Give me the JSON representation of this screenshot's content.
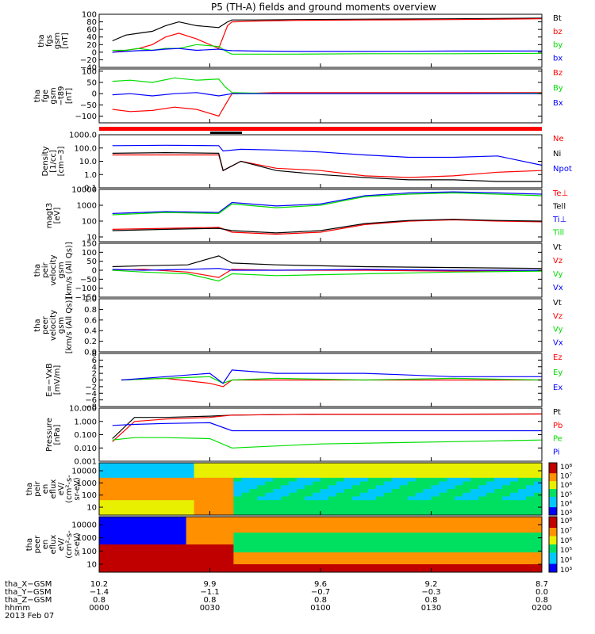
{
  "title": "P5 (TH-A) fields and ground moments overview",
  "colors": {
    "black": "#000000",
    "red": "#ff0000",
    "green": "#00dd00",
    "blue": "#0000ff"
  },
  "chart_data": [
    {
      "type": "line",
      "id": "fgs",
      "ylabel": [
        "tha",
        "fgs",
        "gsm",
        "[nT]"
      ],
      "ylim": [
        -40,
        100
      ],
      "ticks": [
        {
          "v": 100,
          "t": "100"
        },
        {
          "v": 80,
          "t": "80"
        },
        {
          "v": 60,
          "t": "60"
        },
        {
          "v": 40,
          "t": "40"
        },
        {
          "v": 20,
          "t": "20"
        },
        {
          "v": 0,
          "t": "0"
        },
        {
          "v": -20,
          "t": "−20"
        },
        {
          "v": -40,
          "t": "−40"
        }
      ],
      "legend": [
        "Bt",
        "bz",
        "by",
        "bx"
      ],
      "series": [
        {
          "name": "Bt",
          "color": "black",
          "x": [
            0.03,
            0.06,
            0.09,
            0.12,
            0.15,
            0.18,
            0.22,
            0.27,
            0.29,
            0.3,
            0.35,
            0.45,
            0.6,
            0.8,
            1.0
          ],
          "y": [
            30,
            45,
            50,
            55,
            70,
            80,
            70,
            65,
            80,
            85,
            85,
            86,
            87,
            88,
            90
          ]
        },
        {
          "name": "bz",
          "color": "red",
          "x": [
            0.03,
            0.06,
            0.09,
            0.12,
            0.15,
            0.18,
            0.22,
            0.27,
            0.29,
            0.3,
            0.35,
            0.45,
            0.6,
            0.8,
            1.0
          ],
          "y": [
            0,
            5,
            10,
            20,
            40,
            50,
            35,
            10,
            70,
            80,
            82,
            84,
            85,
            86,
            88
          ]
        },
        {
          "name": "by",
          "color": "green",
          "x": [
            0.03,
            0.06,
            0.09,
            0.12,
            0.15,
            0.18,
            0.22,
            0.27,
            0.29,
            0.3,
            0.35,
            0.45,
            0.6,
            0.8,
            1.0
          ],
          "y": [
            5,
            5,
            10,
            5,
            10,
            10,
            20,
            15,
            0,
            -5,
            -5,
            -5,
            -4,
            -4,
            -3
          ]
        },
        {
          "name": "bx",
          "color": "blue",
          "x": [
            0.03,
            0.06,
            0.09,
            0.12,
            0.15,
            0.18,
            0.22,
            0.27,
            0.29,
            0.3,
            0.35,
            0.45,
            0.6,
            0.8,
            1.0
          ],
          "y": [
            0,
            2,
            4,
            5,
            8,
            10,
            5,
            8,
            5,
            4,
            3,
            2,
            2,
            3,
            3
          ]
        }
      ]
    },
    {
      "type": "line",
      "id": "fge",
      "ylabel": [
        "tha",
        "fge",
        "gsm",
        "−t89",
        "[nT]"
      ],
      "ylim": [
        -130,
        110
      ],
      "ticks": [
        {
          "v": 100,
          "t": "100"
        },
        {
          "v": 50,
          "t": "50"
        },
        {
          "v": 0,
          "t": "0"
        },
        {
          "v": -50,
          "t": "−50"
        },
        {
          "v": -100,
          "t": "−100"
        }
      ],
      "legend": [
        "Bz",
        "By",
        "Bx"
      ],
      "series": [
        {
          "name": "Bz",
          "color": "red",
          "x": [
            0.03,
            0.07,
            0.12,
            0.17,
            0.22,
            0.27,
            0.285,
            0.3,
            0.4,
            0.6,
            0.8,
            1.0
          ],
          "y": [
            -70,
            -80,
            -75,
            -60,
            -70,
            -100,
            -50,
            0,
            5,
            5,
            5,
            5
          ]
        },
        {
          "name": "By",
          "color": "green",
          "x": [
            0.03,
            0.07,
            0.12,
            0.17,
            0.22,
            0.27,
            0.285,
            0.3,
            0.4,
            0.6,
            0.8,
            1.0
          ],
          "y": [
            55,
            60,
            50,
            70,
            60,
            65,
            30,
            5,
            0,
            0,
            0,
            2
          ]
        },
        {
          "name": "Bx",
          "color": "blue",
          "x": [
            0.03,
            0.07,
            0.12,
            0.17,
            0.22,
            0.27,
            0.285,
            0.3,
            0.4,
            0.6,
            0.8,
            1.0
          ],
          "y": [
            -5,
            0,
            -10,
            0,
            5,
            -10,
            -5,
            0,
            0,
            0,
            0,
            0
          ]
        }
      ]
    },
    {
      "type": "line",
      "id": "density",
      "log": true,
      "ylabel": [
        "Density",
        "[1/cc]",
        "[cm−3]"
      ],
      "ylim": [
        0.1,
        1000
      ],
      "ticks": [
        {
          "v": 1000,
          "t": "1000.0"
        },
        {
          "v": 100,
          "t": "100.0"
        },
        {
          "v": 10,
          "t": "10.0"
        },
        {
          "v": 1,
          "t": "1.0"
        },
        {
          "v": 0.1,
          "t": "0.1"
        }
      ],
      "legend": [
        "Ne",
        "Ni",
        "Npot"
      ],
      "series": [
        {
          "name": "Ne",
          "color": "red",
          "x": [
            0.03,
            0.15,
            0.27,
            0.28,
            0.32,
            0.4,
            0.5,
            0.6,
            0.7,
            0.8,
            0.9,
            1.0
          ],
          "y": [
            30,
            30,
            30,
            2,
            10,
            3,
            2,
            0.8,
            0.6,
            0.8,
            1.5,
            2
          ]
        },
        {
          "name": "Ni",
          "color": "black",
          "x": [
            0.03,
            0.15,
            0.27,
            0.28,
            0.32,
            0.4,
            0.5,
            0.6,
            0.7,
            0.8,
            0.9,
            1.0
          ],
          "y": [
            40,
            45,
            40,
            2,
            10,
            2,
            1,
            0.6,
            0.4,
            0.4,
            0.3,
            0.3
          ]
        },
        {
          "name": "Npot",
          "color": "blue",
          "x": [
            0.03,
            0.15,
            0.27,
            0.28,
            0.32,
            0.4,
            0.5,
            0.6,
            0.7,
            0.8,
            0.9,
            1.0
          ],
          "y": [
            150,
            160,
            150,
            60,
            80,
            70,
            50,
            30,
            20,
            20,
            25,
            5
          ]
        }
      ]
    },
    {
      "type": "line",
      "id": "temp",
      "log": true,
      "ylabel": [
        "magt3",
        "[eV]"
      ],
      "ylim": [
        5,
        10000
      ],
      "ticks": [
        {
          "v": 10000,
          "t": "10000"
        },
        {
          "v": 1000,
          "t": "1000"
        },
        {
          "v": 100,
          "t": "100"
        },
        {
          "v": 10,
          "t": "10"
        }
      ],
      "legend": [
        "Te⊥",
        "Tell",
        "Ti⊥",
        "Till"
      ],
      "series": [
        {
          "name": "Te⊥",
          "color": "red",
          "x": [
            0.03,
            0.15,
            0.27,
            0.3,
            0.4,
            0.5,
            0.6,
            0.7,
            0.8,
            0.9,
            1.0
          ],
          "y": [
            30,
            35,
            40,
            20,
            15,
            20,
            60,
            100,
            120,
            100,
            90
          ]
        },
        {
          "name": "Tell",
          "color": "black",
          "x": [
            0.03,
            0.15,
            0.27,
            0.3,
            0.4,
            0.5,
            0.6,
            0.7,
            0.8,
            0.9,
            1.0
          ],
          "y": [
            25,
            30,
            35,
            25,
            18,
            25,
            70,
            110,
            130,
            110,
            100
          ]
        },
        {
          "name": "Ti⊥",
          "color": "blue",
          "x": [
            0.03,
            0.15,
            0.27,
            0.3,
            0.4,
            0.5,
            0.6,
            0.7,
            0.8,
            0.9,
            1.0
          ],
          "y": [
            300,
            400,
            350,
            1500,
            900,
            1200,
            4000,
            6000,
            7000,
            6000,
            5000
          ]
        },
        {
          "name": "Till",
          "color": "green",
          "x": [
            0.03,
            0.15,
            0.27,
            0.3,
            0.4,
            0.5,
            0.6,
            0.7,
            0.8,
            0.9,
            1.0
          ],
          "y": [
            250,
            350,
            300,
            1200,
            700,
            1000,
            3500,
            5000,
            6000,
            5000,
            4000
          ]
        }
      ]
    },
    {
      "type": "line",
      "id": "peir_vel",
      "ylabel": [
        "tha",
        "peir",
        "velocity",
        "gsm",
        "[km/s (All Qs)]"
      ],
      "ylim": [
        -150,
        150
      ],
      "ticks": [
        {
          "v": 150,
          "t": "150"
        },
        {
          "v": 100,
          "t": "100"
        },
        {
          "v": 50,
          "t": "50"
        },
        {
          "v": 0,
          "t": "0"
        },
        {
          "v": -50,
          "t": "−50"
        },
        {
          "v": -100,
          "t": "−100"
        },
        {
          "v": -150,
          "t": "−150"
        }
      ],
      "legend": [
        "Vt",
        "Vz",
        "Vy",
        "Vx"
      ],
      "series": [
        {
          "name": "Vt",
          "color": "black",
          "x": [
            0.03,
            0.1,
            0.2,
            0.27,
            0.3,
            0.4,
            0.6,
            0.8,
            1.0
          ],
          "y": [
            20,
            25,
            30,
            80,
            40,
            30,
            20,
            15,
            10
          ]
        },
        {
          "name": "Vz",
          "color": "red",
          "x": [
            0.03,
            0.1,
            0.2,
            0.27,
            0.3,
            0.4,
            0.6,
            0.8,
            1.0
          ],
          "y": [
            0,
            5,
            -10,
            -40,
            5,
            0,
            0,
            -5,
            0
          ]
        },
        {
          "name": "Vy",
          "color": "green",
          "x": [
            0.03,
            0.1,
            0.2,
            0.27,
            0.3,
            0.4,
            0.6,
            0.8,
            1.0
          ],
          "y": [
            0,
            -10,
            -20,
            -60,
            -20,
            -30,
            -20,
            -10,
            -5
          ]
        },
        {
          "name": "Vx",
          "color": "blue",
          "x": [
            0.03,
            0.1,
            0.2,
            0.27,
            0.3,
            0.4,
            0.6,
            0.8,
            1.0
          ],
          "y": [
            5,
            0,
            5,
            10,
            0,
            0,
            5,
            0,
            0
          ]
        }
      ]
    },
    {
      "type": "line",
      "id": "peer_vel",
      "ylabel": [
        "tha",
        "peer",
        "velocity",
        "gsm",
        "[km/s (All Qs)]"
      ],
      "ylim": [
        0,
        1
      ],
      "ticks": [
        {
          "v": 1,
          "t": "1.0"
        },
        {
          "v": 0.8,
          "t": "0.8"
        },
        {
          "v": 0.6,
          "t": "0.6"
        },
        {
          "v": 0.4,
          "t": "0.4"
        },
        {
          "v": 0.2,
          "t": "0.2"
        },
        {
          "v": 0,
          "t": "0.0"
        }
      ],
      "legend": [
        "Vt",
        "Vz",
        "Vy",
        "Vx"
      ],
      "series": []
    },
    {
      "type": "line",
      "id": "efield",
      "ylabel": [
        "E=−VxB",
        "[mV/m]"
      ],
      "ylim": [
        -8,
        8
      ],
      "ticks": [
        {
          "v": 8,
          "t": "8"
        },
        {
          "v": 6,
          "t": "6"
        },
        {
          "v": 4,
          "t": "4"
        },
        {
          "v": 2,
          "t": "2"
        },
        {
          "v": 0,
          "t": "0"
        },
        {
          "v": -2,
          "t": "−2"
        },
        {
          "v": -4,
          "t": "−4"
        },
        {
          "v": -6,
          "t": "−6"
        },
        {
          "v": -8,
          "t": "−8"
        }
      ],
      "legend": [
        "Ez",
        "Ey",
        "Ex"
      ],
      "series": [
        {
          "name": "Ez",
          "color": "red",
          "x": [
            0.05,
            0.15,
            0.25,
            0.28,
            0.3,
            0.4,
            0.6,
            0.8,
            1.0
          ],
          "y": [
            0,
            0.5,
            -1,
            -2,
            0,
            0,
            0,
            0,
            0
          ]
        },
        {
          "name": "Ey",
          "color": "green",
          "x": [
            0.05,
            0.15,
            0.25,
            0.28,
            0.3,
            0.4,
            0.6,
            0.8,
            1.0
          ],
          "y": [
            0,
            0.5,
            1,
            -1,
            0,
            0.5,
            0,
            0.5,
            0
          ]
        },
        {
          "name": "Ex",
          "color": "blue",
          "x": [
            0.05,
            0.15,
            0.25,
            0.28,
            0.3,
            0.4,
            0.6,
            0.8,
            1.0
          ],
          "y": [
            0,
            1,
            2,
            -1,
            3,
            2,
            2,
            1,
            1
          ]
        }
      ]
    },
    {
      "type": "line",
      "id": "pressure",
      "log": true,
      "ylabel": [
        "Pressure",
        "[nPa]"
      ],
      "ylim": [
        0.001,
        10
      ],
      "ticks": [
        {
          "v": 10,
          "t": "10.000"
        },
        {
          "v": 1,
          "t": "1.000"
        },
        {
          "v": 0.1,
          "t": "0.100"
        },
        {
          "v": 0.01,
          "t": "0.010"
        },
        {
          "v": 0.001,
          "t": "0.001"
        }
      ],
      "legend": [
        "Pt",
        "Pb",
        "Pe",
        "Pi"
      ],
      "series": [
        {
          "name": "Pt",
          "color": "black",
          "x": [
            0.03,
            0.08,
            0.15,
            0.25,
            0.3,
            0.5,
            0.8,
            1.0
          ],
          "y": [
            0.05,
            2,
            2,
            2.5,
            3,
            3.5,
            3.5,
            3.6
          ]
        },
        {
          "name": "Pb",
          "color": "red",
          "x": [
            0.03,
            0.08,
            0.15,
            0.25,
            0.3,
            0.5,
            0.8,
            1.0
          ],
          "y": [
            0.03,
            1,
            1.5,
            2,
            3,
            3.5,
            3.5,
            3.6
          ]
        },
        {
          "name": "Pe",
          "color": "green",
          "x": [
            0.03,
            0.08,
            0.15,
            0.25,
            0.3,
            0.5,
            0.8,
            1.0
          ],
          "y": [
            0.04,
            0.06,
            0.06,
            0.05,
            0.01,
            0.02,
            0.03,
            0.04
          ]
        },
        {
          "name": "Pi",
          "color": "blue",
          "x": [
            0.03,
            0.08,
            0.15,
            0.25,
            0.3,
            0.5,
            0.8,
            1.0
          ],
          "y": [
            0.5,
            0.6,
            0.7,
            0.8,
            0.2,
            0.2,
            0.2,
            0.2
          ]
        }
      ]
    },
    {
      "type": "heatmap",
      "id": "peir_eflux",
      "ylabel": [
        "tha",
        "peir",
        "en",
        "eflux",
        "eV/",
        "(cm²-s-",
        "sr-eV)"
      ],
      "ticks": [
        {
          "t": "10000"
        },
        {
          "t": "1000"
        },
        {
          "t": "100"
        },
        {
          "t": "10"
        }
      ],
      "colorbar": [
        "10⁸",
        "10⁷",
        "10⁶",
        "10⁵",
        "10⁴",
        "10³"
      ]
    },
    {
      "type": "heatmap",
      "id": "peer_eflux",
      "ylabel": [
        "tha",
        "peer",
        "en",
        "eflux",
        "eV/",
        "(cm²-s-",
        "sr-eV)"
      ],
      "ticks": [
        {
          "t": "10000"
        },
        {
          "t": "1000"
        },
        {
          "t": "100"
        },
        {
          "t": "10"
        }
      ],
      "colorbar": [
        "10⁸",
        "10⁷",
        "10⁶",
        "10⁵",
        "10⁴",
        "10³"
      ]
    }
  ],
  "xaxis": {
    "rows": [
      {
        "label": "tha_X−GSM",
        "values": [
          "10.2",
          "9.9",
          "9.6",
          "9.2",
          "8.7"
        ]
      },
      {
        "label": "tha_Y−GSM",
        "values": [
          "−1.4",
          "−1.1",
          "−0.7",
          "−0.3",
          "0.0"
        ]
      },
      {
        "label": "tha_Z−GSM",
        "values": [
          "0.8",
          "0.8",
          "0.8",
          "0.8",
          "0.8"
        ]
      },
      {
        "label": "hhmm",
        "values": [
          "0000",
          "0030",
          "0100",
          "0130",
          "0200"
        ]
      }
    ],
    "date": "2013 Feb 07"
  }
}
